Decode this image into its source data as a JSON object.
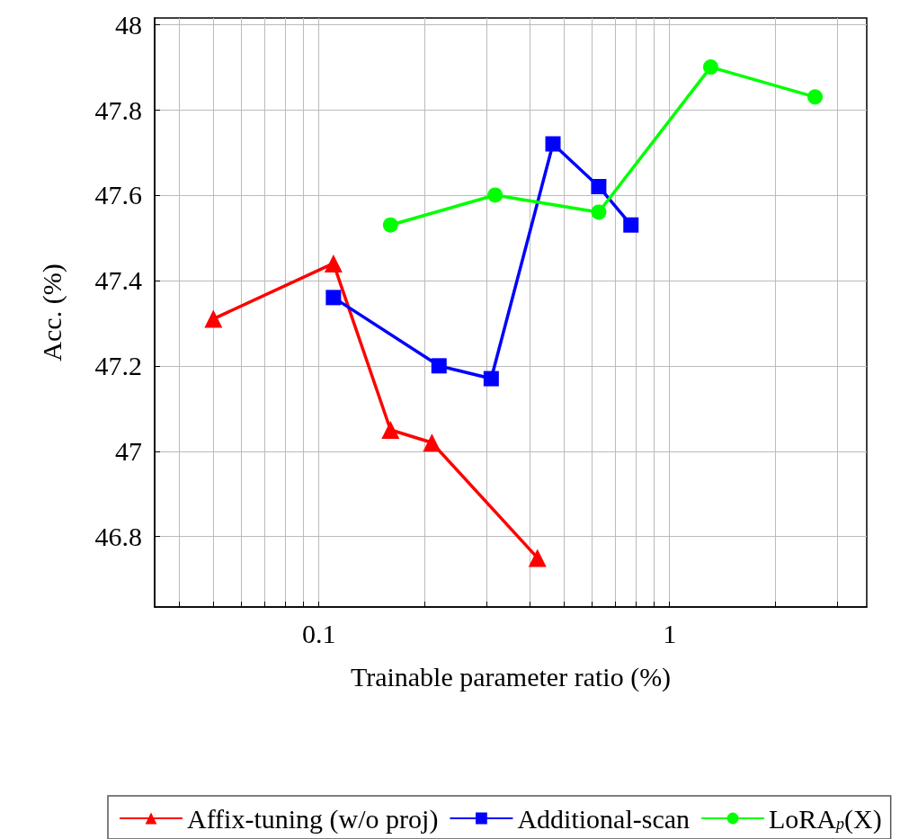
{
  "chart_data": {
    "type": "line",
    "xlabel": "Trainable parameter ratio (%)",
    "ylabel": "Acc. (%)",
    "log": "x",
    "grid": true,
    "legend": "bottom",
    "line_style": "solid",
    "xlim": [
      0.034,
      3.65
    ],
    "ylim": [
      46.635,
      48.015
    ],
    "xticks": [
      {
        "value": 0.04,
        "label": null
      },
      {
        "value": 0.05,
        "label": null
      },
      {
        "value": 0.06,
        "label": null
      },
      {
        "value": 0.07,
        "label": null
      },
      {
        "value": 0.08,
        "label": null
      },
      {
        "value": 0.09,
        "label": null
      },
      0.1,
      {
        "value": 0.2,
        "label": null
      },
      {
        "value": 0.3,
        "label": null
      },
      {
        "value": 0.4,
        "label": null
      },
      {
        "value": 0.5,
        "label": null
      },
      {
        "value": 0.6,
        "label": null
      },
      {
        "value": 0.7,
        "label": null
      },
      {
        "value": 0.8,
        "label": null
      },
      {
        "value": 0.9,
        "label": null
      },
      1,
      {
        "value": 2,
        "label": null
      },
      {
        "value": 3,
        "label": null
      }
    ],
    "yticks": [
      46.8,
      47,
      47.2,
      47.4,
      47.6,
      47.8,
      48
    ],
    "series": [
      {
        "name": "Affix-tuning (w/o proj)",
        "color": "#ff0000",
        "marker": "triangle",
        "x": [
          0.05,
          0.11,
          0.16,
          0.21,
          0.42
        ],
        "values": [
          47.31,
          47.44,
          47.05,
          47.02,
          46.75
        ]
      },
      {
        "name": "Additional-scan",
        "color": "#0000ff",
        "marker": "square",
        "x": [
          0.11,
          0.22,
          0.31,
          0.465,
          0.628,
          0.776
        ],
        "values": [
          47.36,
          47.2,
          47.17,
          47.72,
          47.62,
          47.53
        ]
      },
      {
        "name": "LoRA$_{p}$(X)",
        "color": "#00ff00",
        "marker": "circle",
        "x": [
          0.16,
          0.318,
          0.628,
          1.31,
          2.6
        ],
        "values": [
          47.53,
          47.6,
          47.56,
          47.9,
          47.83
        ]
      }
    ]
  }
}
